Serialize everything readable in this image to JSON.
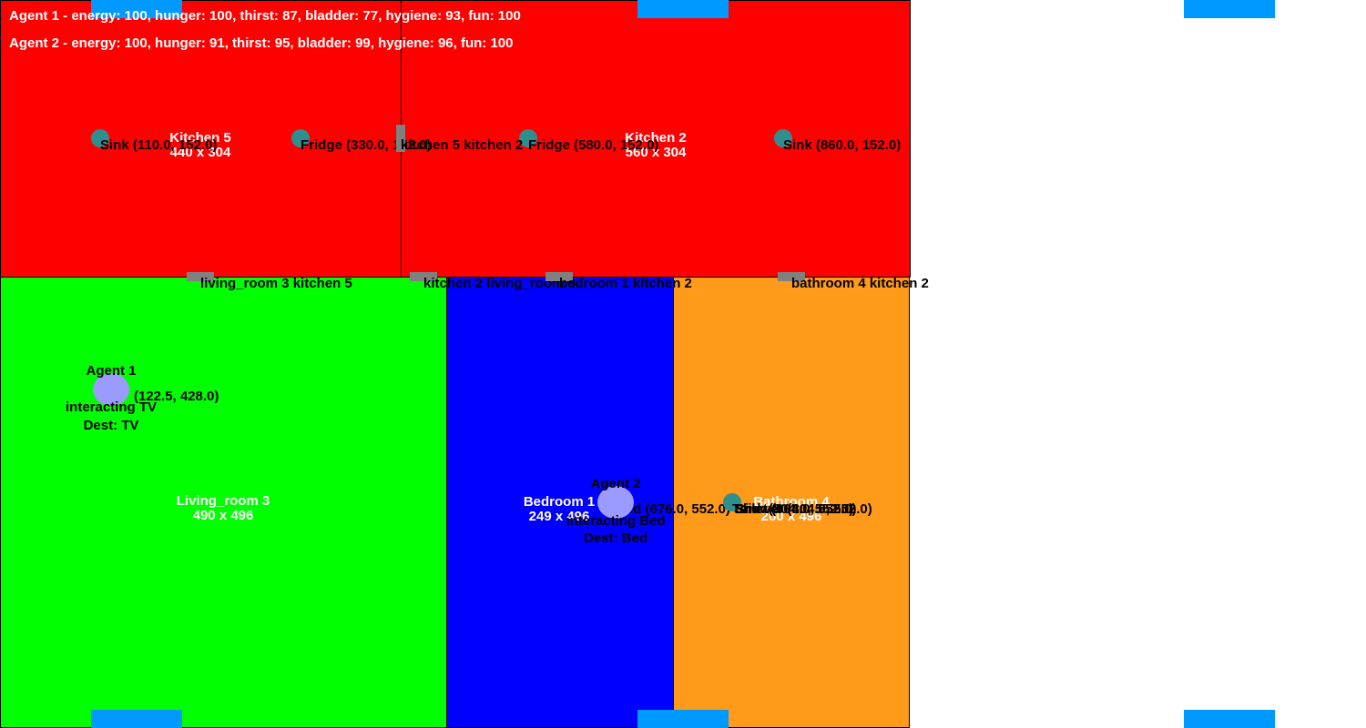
{
  "status": {
    "agent1": "Agent 1 - energy: 100, hunger: 100, thirst: 87, bladder: 77, hygiene: 93, fun: 100",
    "agent2": "Agent 2 - energy: 100, hunger: 91, thirst: 95, bladder: 99, hygiene: 96, fun: 100"
  },
  "rooms": {
    "kitchen5": {
      "name": "Kitchen 5",
      "size": "440 x 304",
      "color": "#ff0000"
    },
    "kitchen2": {
      "name": "Kitchen 2",
      "size": "560 x 304",
      "color": "#ff0000"
    },
    "living_room3": {
      "name": "Living_room 3",
      "size": "490 x 496",
      "color": "#00ff00"
    },
    "bedroom1": {
      "name": "Bedroom 1",
      "size": "249 x 496",
      "color": "#0000ff"
    },
    "bathroom4": {
      "name": "Bathroom 4",
      "size": "260 x 496",
      "color": "#ff9a1a"
    }
  },
  "objects": {
    "sink_k5": "Sink (110.0, 152.0)",
    "fridge_k5": "Fridge (330.0, 152.0)",
    "fridge_k2": "Fridge (580.0, 152.0)",
    "sink_k2": "Sink (860.0, 152.0)",
    "bed_b1": "Bed (676.0, 552.0)",
    "toilet_b4": "Toilet (804.0, 552.0)",
    "shower_b4": "Shower (804.0, 552.0)",
    "sink_b4": "Sink (804.0, 552.0)"
  },
  "doors": {
    "k5_k2": "kitchen 5 kitchen 2",
    "lr3_k5": "living_room 3 kitchen 5",
    "k2_lr3": "kitchen 2 living_room 3",
    "b1_k2": "bedroom 1 kitchen 2",
    "b4_k2": "bathroom 4 kitchen 2"
  },
  "agents": {
    "a1": {
      "name": "Agent 1",
      "pos": "(122.5, 428.0)",
      "state": "interacting TV",
      "dest": "Dest: TV"
    },
    "a2": {
      "name": "Agent 2",
      "state": "interacting Bed",
      "dest": "Dest: Bed"
    }
  },
  "colors": {
    "object": "#2f8f8f",
    "door": "#808080",
    "agent": "#9a9aff",
    "window": "#0099ff"
  }
}
